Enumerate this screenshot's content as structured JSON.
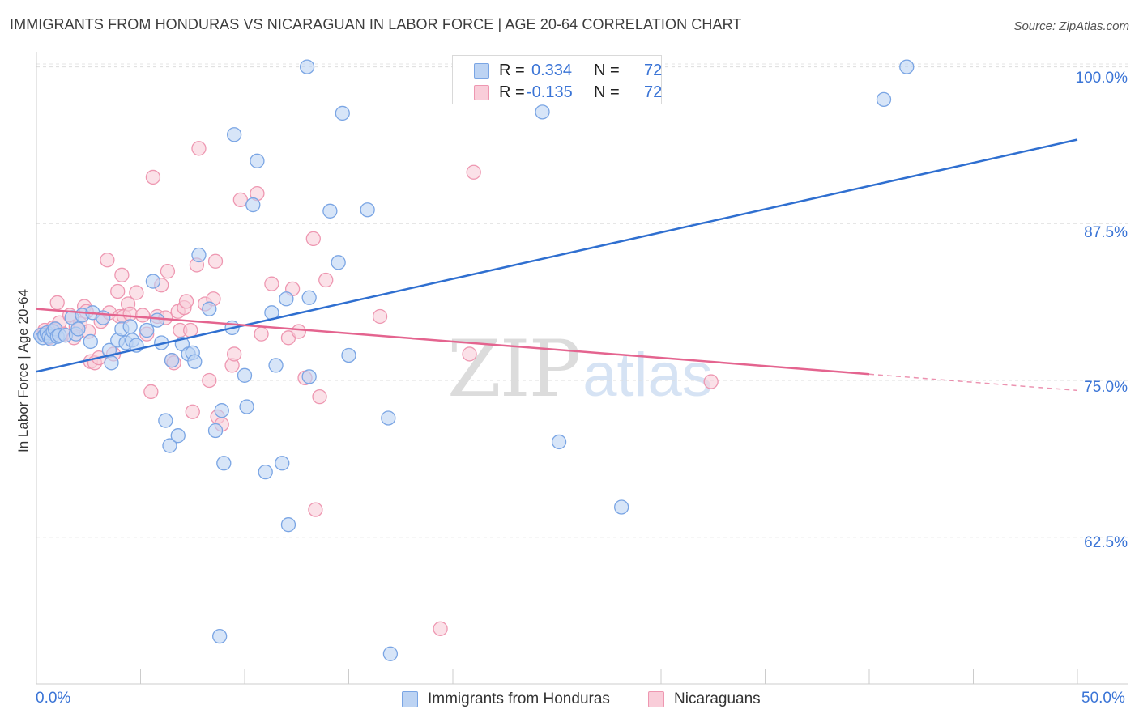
{
  "header": {
    "title": "IMMIGRANTS FROM HONDURAS VS NICARAGUAN IN LABOR FORCE | AGE 20-64 CORRELATION CHART",
    "source": "Source: ZipAtlas.com"
  },
  "watermark": {
    "zip": "ZIP",
    "atlas": "atlas"
  },
  "colors": {
    "blue_fill": "#bcd3f3",
    "blue_stroke": "#7aa5e4",
    "blue_line": "#2f6fd0",
    "pink_fill": "#f9cdd9",
    "pink_stroke": "#ee97b1",
    "pink_line": "#e4648f",
    "tick_text": "#3a74d6"
  },
  "legend_top": {
    "rows": [
      {
        "r_label": "R =",
        "r_value": "0.334",
        "n_label": "N =",
        "n_value": "72"
      },
      {
        "r_label": "R =",
        "r_value": "-0.135",
        "n_label": "N =",
        "n_value": "72"
      }
    ]
  },
  "chart_data": {
    "type": "scatter",
    "title": "IMMIGRANTS FROM HONDURAS VS NICARAGUAN IN LABOR FORCE | AGE 20-64 CORRELATION CHART",
    "xlabel": "",
    "ylabel": "In Labor Force | Age 20-64",
    "xlim": [
      0,
      50
    ],
    "ylim": [
      50.8,
      101.2
    ],
    "x_tick_labels": [
      "0.0%",
      "50.0%"
    ],
    "y_ticks": [
      {
        "value": 62.5,
        "label": "62.5%"
      },
      {
        "value": 75.0,
        "label": "75.0%"
      },
      {
        "value": 87.5,
        "label": "87.5%"
      },
      {
        "value": 100.0,
        "label": "100.0%"
      }
    ],
    "grid": true,
    "legend_position": "bottom",
    "series": [
      {
        "name": "Immigrants from Honduras",
        "color": "blue",
        "r": 0.334,
        "n": 72,
        "trend": {
          "x": [
            0,
            50
          ],
          "y": [
            75.7,
            94.2
          ]
        },
        "points": [
          [
            0.2,
            78.6
          ],
          [
            0.3,
            78.4
          ],
          [
            0.4,
            78.6
          ],
          [
            0.5,
            78.8
          ],
          [
            0.6,
            78.5
          ],
          [
            0.7,
            78.3
          ],
          [
            0.8,
            78.9
          ],
          [
            0.9,
            79.1
          ],
          [
            1.0,
            78.5
          ],
          [
            1.1,
            78.6
          ],
          [
            1.4,
            78.6
          ],
          [
            1.7,
            80.0
          ],
          [
            1.9,
            78.7
          ],
          [
            2.0,
            79.1
          ],
          [
            2.2,
            80.2
          ],
          [
            2.6,
            78.1
          ],
          [
            2.7,
            80.4
          ],
          [
            3.2,
            80.0
          ],
          [
            3.5,
            77.4
          ],
          [
            3.6,
            76.4
          ],
          [
            3.9,
            78.2
          ],
          [
            4.1,
            79.1
          ],
          [
            4.3,
            78.0
          ],
          [
            4.5,
            79.3
          ],
          [
            4.6,
            78.2
          ],
          [
            4.8,
            77.8
          ],
          [
            5.3,
            79.0
          ],
          [
            5.6,
            82.9
          ],
          [
            5.8,
            79.8
          ],
          [
            6.0,
            78.0
          ],
          [
            6.2,
            71.8
          ],
          [
            6.4,
            69.8
          ],
          [
            6.5,
            76.6
          ],
          [
            6.8,
            70.6
          ],
          [
            7.0,
            77.9
          ],
          [
            7.3,
            77.1
          ],
          [
            7.5,
            77.2
          ],
          [
            7.6,
            76.5
          ],
          [
            7.8,
            85.0
          ],
          [
            8.3,
            80.7
          ],
          [
            8.6,
            71.0
          ],
          [
            8.8,
            54.6
          ],
          [
            8.9,
            72.6
          ],
          [
            9.0,
            68.4
          ],
          [
            9.4,
            79.2
          ],
          [
            9.5,
            94.6
          ],
          [
            10.0,
            75.4
          ],
          [
            10.1,
            72.9
          ],
          [
            10.4,
            89.0
          ],
          [
            10.6,
            92.5
          ],
          [
            11.0,
            67.7
          ],
          [
            11.3,
            80.4
          ],
          [
            11.5,
            76.2
          ],
          [
            11.8,
            68.4
          ],
          [
            12.0,
            81.5
          ],
          [
            12.1,
            63.5
          ],
          [
            13.1,
            75.3
          ],
          [
            13.1,
            81.6
          ],
          [
            13.0,
            100.0
          ],
          [
            14.1,
            88.5
          ],
          [
            14.5,
            84.4
          ],
          [
            14.7,
            96.3
          ],
          [
            15.0,
            77.0
          ],
          [
            15.9,
            88.6
          ],
          [
            16.9,
            72.0
          ],
          [
            17.0,
            53.2
          ],
          [
            24.3,
            96.4
          ],
          [
            24.8,
            100.0
          ],
          [
            25.1,
            70.1
          ],
          [
            28.1,
            64.9
          ],
          [
            40.7,
            97.4
          ],
          [
            41.8,
            100.0
          ]
        ]
      },
      {
        "name": "Nicaraguans",
        "color": "pink",
        "r": -0.135,
        "n": 72,
        "trend": {
          "x": [
            0,
            40
          ],
          "y": [
            80.7,
            75.5
          ]
        },
        "trend_dashed": {
          "x": [
            40,
            50
          ],
          "y": [
            75.5,
            74.2
          ]
        },
        "points": [
          [
            0.3,
            78.7
          ],
          [
            0.4,
            79.0
          ],
          [
            0.6,
            78.4
          ],
          [
            0.8,
            79.2
          ],
          [
            0.9,
            79.0
          ],
          [
            1.0,
            81.2
          ],
          [
            1.1,
            79.6
          ],
          [
            1.3,
            78.7
          ],
          [
            1.6,
            80.2
          ],
          [
            1.8,
            78.4
          ],
          [
            1.9,
            79.3
          ],
          [
            2.1,
            79.5
          ],
          [
            2.3,
            80.9
          ],
          [
            2.4,
            80.5
          ],
          [
            2.5,
            78.9
          ],
          [
            2.6,
            76.5
          ],
          [
            2.8,
            76.4
          ],
          [
            3.0,
            76.8
          ],
          [
            3.1,
            79.7
          ],
          [
            3.4,
            84.6
          ],
          [
            3.5,
            80.4
          ],
          [
            3.7,
            77.1
          ],
          [
            3.9,
            82.1
          ],
          [
            4.0,
            80.1
          ],
          [
            4.1,
            83.4
          ],
          [
            4.2,
            80.1
          ],
          [
            4.4,
            81.1
          ],
          [
            4.5,
            80.3
          ],
          [
            4.8,
            82.0
          ],
          [
            5.1,
            80.2
          ],
          [
            5.3,
            78.7
          ],
          [
            5.5,
            74.1
          ],
          [
            5.6,
            91.2
          ],
          [
            5.8,
            80.1
          ],
          [
            6.0,
            82.6
          ],
          [
            6.2,
            80.0
          ],
          [
            6.3,
            83.7
          ],
          [
            6.5,
            76.6
          ],
          [
            6.6,
            76.4
          ],
          [
            6.8,
            80.5
          ],
          [
            6.9,
            79.0
          ],
          [
            7.1,
            80.8
          ],
          [
            7.2,
            81.3
          ],
          [
            7.4,
            79.0
          ],
          [
            7.5,
            72.5
          ],
          [
            7.7,
            84.2
          ],
          [
            7.8,
            93.5
          ],
          [
            8.1,
            81.1
          ],
          [
            8.3,
            75.0
          ],
          [
            8.5,
            81.5
          ],
          [
            8.6,
            84.5
          ],
          [
            8.7,
            72.1
          ],
          [
            8.9,
            71.5
          ],
          [
            9.4,
            76.2
          ],
          [
            9.5,
            77.1
          ],
          [
            9.8,
            89.4
          ],
          [
            10.6,
            89.9
          ],
          [
            10.8,
            78.7
          ],
          [
            11.3,
            82.7
          ],
          [
            12.1,
            78.4
          ],
          [
            12.3,
            82.3
          ],
          [
            12.6,
            78.9
          ],
          [
            12.9,
            75.2
          ],
          [
            13.3,
            86.3
          ],
          [
            13.4,
            64.7
          ],
          [
            13.6,
            73.7
          ],
          [
            13.9,
            83.0
          ],
          [
            16.5,
            80.1
          ],
          [
            19.4,
            55.2
          ],
          [
            20.8,
            77.1
          ],
          [
            21.0,
            91.6
          ],
          [
            32.4,
            74.9
          ]
        ]
      }
    ]
  },
  "legend_bottom": {
    "items": [
      {
        "label": "Immigrants from Honduras"
      },
      {
        "label": "Nicaraguans"
      }
    ]
  }
}
